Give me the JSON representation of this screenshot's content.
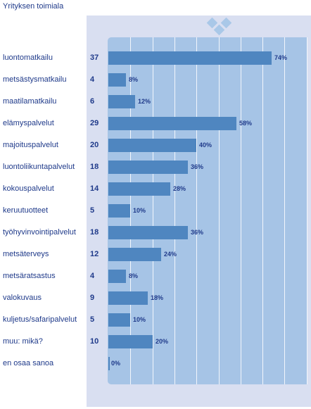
{
  "header": {
    "title": "Yrityksen toimiala"
  },
  "chart_data": {
    "type": "bar",
    "orientation": "horizontal",
    "title": "Yrityksen toimiala",
    "xlim": [
      0,
      100
    ],
    "grid": true,
    "categories": [
      "luontomatkailu",
      "metsästysmatkailu",
      "maatilamatkailu",
      "elämyspalvelut",
      "majoituspalvelut",
      "luontoliikuntapalvelut",
      "kokouspalvelut",
      "keruutuotteet",
      "työhyvinvointipalvelut",
      "metsäterveys",
      "metsäratsastus",
      "valokuvaus",
      "kuljetus/safaripalvelut",
      "muu: mikä?",
      "en osaa sanoa"
    ],
    "counts": [
      37,
      4,
      6,
      29,
      20,
      18,
      14,
      5,
      18,
      12,
      4,
      9,
      5,
      10,
      null
    ],
    "percent_labels": [
      "74%",
      "8%",
      "12%",
      "58%",
      "40%",
      "36%",
      "28%",
      "10%",
      "36%",
      "24%",
      "8%",
      "18%",
      "10%",
      "20%",
      "0%"
    ],
    "values": [
      74,
      8,
      12,
      58,
      40,
      36,
      28,
      10,
      36,
      24,
      8,
      18,
      10,
      20,
      0
    ]
  },
  "colors": {
    "bar": "#4f86c0",
    "plot_background": "#a6c4e6",
    "panel_background": "#d9dff1",
    "text": "#1f3a8a"
  }
}
